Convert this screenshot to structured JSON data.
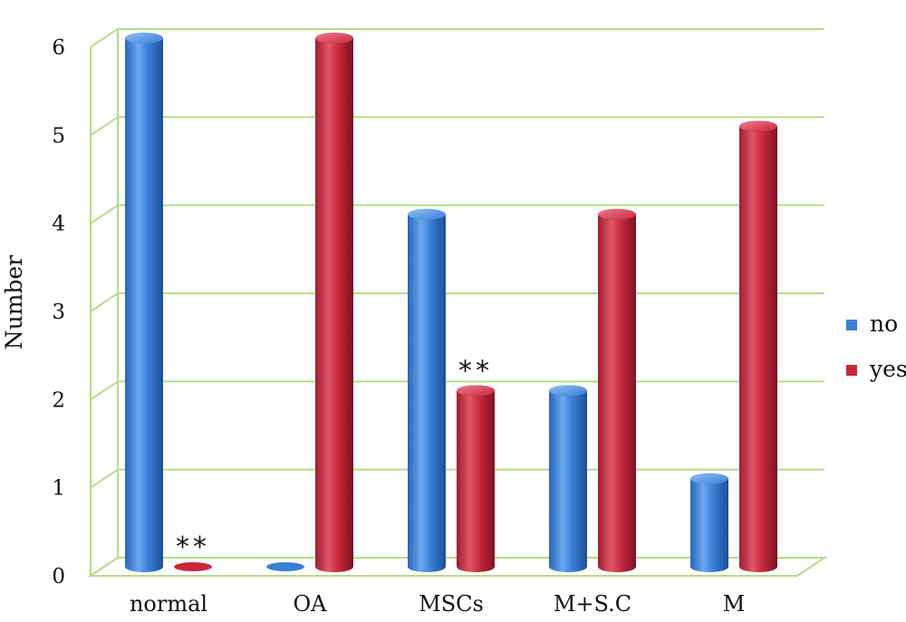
{
  "chart_data": {
    "type": "bar",
    "categories": [
      "normal",
      "OA",
      "MSCs",
      "M+S.C",
      "M"
    ],
    "series": [
      {
        "name": "no",
        "values": [
          6,
          0,
          4,
          2,
          1
        ],
        "color": "#3a7fd5"
      },
      {
        "name": "yes",
        "values": [
          0,
          6,
          2,
          4,
          5
        ],
        "color": "#c8283c"
      }
    ],
    "ylabel": "Number",
    "xlabel": "",
    "ylim": [
      0,
      6
    ],
    "yticks": [
      "0",
      "1",
      "2",
      "3",
      "4",
      "5",
      "6"
    ],
    "grid": true,
    "grid_color": "#b5dc8a",
    "legend_position": "right",
    "annotations": [
      {
        "text": "**",
        "category": "normal",
        "series": "yes"
      },
      {
        "text": "**",
        "category": "MSCs",
        "series": "yes"
      }
    ]
  }
}
